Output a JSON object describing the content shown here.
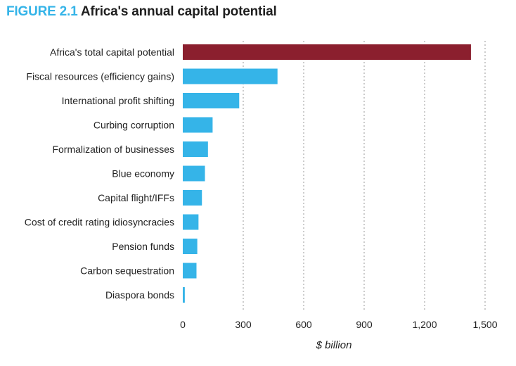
{
  "figure": {
    "label": "FIGURE 2.1",
    "title": "Africa's annual capital potential"
  },
  "chart_data": {
    "type": "bar",
    "orientation": "horizontal",
    "title": "Africa's annual capital potential",
    "xlabel": "$ billion",
    "ylabel": "",
    "xlim": [
      0,
      1500
    ],
    "ticks": [
      0,
      300,
      600,
      900,
      1200,
      1500
    ],
    "tick_labels": [
      "0",
      "300",
      "600",
      "900",
      "1,200",
      "1,500"
    ],
    "grid": "vertical-dotted",
    "categories": [
      "Africa's total capital potential",
      "Fiscal resources (efficiency gains)",
      "International profit shifting",
      "Curbing corruption",
      "Formalization of businesses",
      "Blue economy",
      "Capital flight/IFFs",
      "Cost of credit rating idiosyncracies",
      "Pension funds",
      "Carbon sequestration",
      "Diaspora bonds"
    ],
    "values": [
      1430,
      470,
      280,
      148,
      125,
      110,
      95,
      78,
      72,
      68,
      10
    ],
    "colors": [
      "#8b1f2e",
      "#35b4e8",
      "#35b4e8",
      "#35b4e8",
      "#35b4e8",
      "#35b4e8",
      "#35b4e8",
      "#35b4e8",
      "#35b4e8",
      "#35b4e8",
      "#35b4e8"
    ]
  }
}
